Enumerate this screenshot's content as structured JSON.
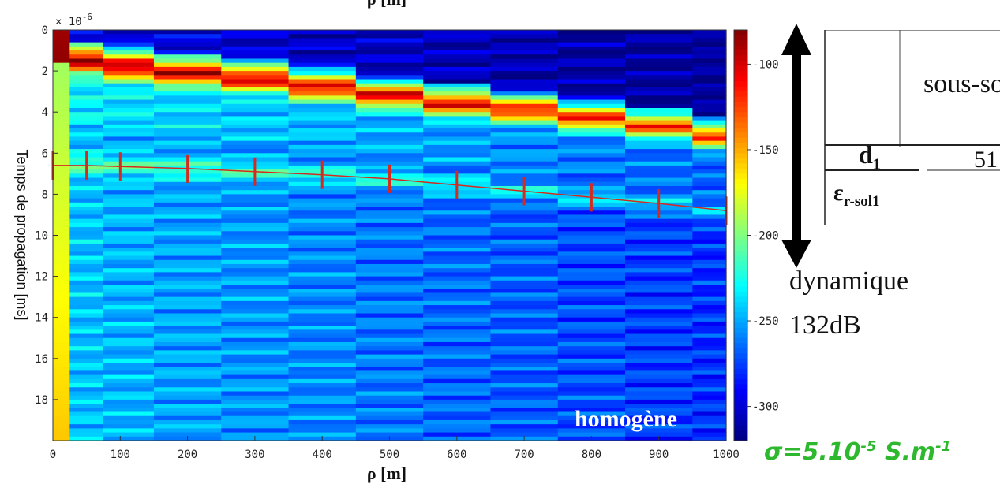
{
  "chart_data": {
    "type": "heatmap",
    "xlabel_top": "ρ [m]",
    "xlabel": "ρ [m]",
    "ylabel": "Temps de propagation [ms]",
    "y_exponent": "× 10",
    "y_exponent_power": "-6",
    "x_columns": [
      0,
      50,
      100,
      200,
      300,
      400,
      500,
      600,
      700,
      800,
      900,
      1000
    ],
    "xlim": [
      0,
      1000
    ],
    "ylim": [
      0,
      20
    ],
    "x_ticks": [
      "0",
      "100",
      "200",
      "300",
      "400",
      "500",
      "600",
      "700",
      "800",
      "900",
      "1000"
    ],
    "y_ticks": [
      "0",
      "2",
      "4",
      "6",
      "8",
      "10",
      "12",
      "14",
      "16",
      "18"
    ],
    "colorbar_ticks": [
      "-100",
      "-150",
      "-200",
      "-250",
      "-300"
    ],
    "colorbar_range": [
      -320,
      -80
    ],
    "colormap": "jet",
    "peak_arrival_times": [
      1.0,
      1.5,
      1.8,
      2.1,
      2.4,
      2.8,
      3.2,
      3.6,
      3.9,
      4.3,
      4.7,
      5.2
    ],
    "fitted_curve": {
      "x": [
        0,
        50,
        100,
        200,
        300,
        400,
        500,
        600,
        700,
        800,
        900,
        1000
      ],
      "y": [
        6.6,
        6.6,
        6.65,
        6.75,
        6.9,
        7.05,
        7.25,
        7.55,
        7.85,
        8.15,
        8.45,
        8.8
      ],
      "color": "#d62a1e"
    },
    "markers": [
      0,
      50,
      100,
      200,
      300,
      400,
      500,
      600,
      700,
      800,
      900,
      1000
    ]
  },
  "annotations": {
    "homogene": "homogène",
    "dynamique": "dynamique",
    "dynamique_value": "132dB",
    "sigma_base": "σ=5.10",
    "sigma_exp": "-5",
    "sigma_unit": " S.m",
    "sigma_unit_exp": "-1",
    "sigma_color": "#2eb82e"
  },
  "table": {
    "header": "sous-sol",
    "row1_label": "d",
    "row1_sub": "1",
    "row1_value": "51",
    "row2_label": "ε",
    "row2_sub": "r-sol1"
  }
}
